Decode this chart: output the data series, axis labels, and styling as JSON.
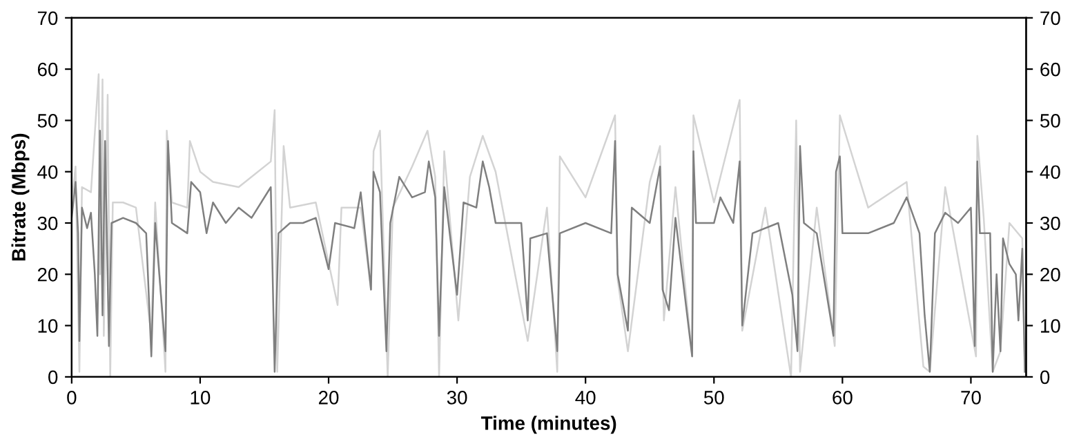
{
  "chart_data": {
    "type": "line",
    "xlabel": "Time (minutes)",
    "ylabel": "Bitrate (Mbps)",
    "xlim": [
      0,
      74.3
    ],
    "xticks": [
      0,
      10,
      20,
      30,
      40,
      50,
      60,
      70
    ],
    "ylim": [
      0,
      70
    ],
    "yticks": [
      0,
      10,
      20,
      30,
      40,
      50,
      60,
      70
    ],
    "y2lim": [
      0,
      70
    ],
    "y2ticks": [
      0,
      10,
      20,
      30,
      40,
      50,
      60,
      70
    ],
    "grid": false,
    "marker": "none",
    "line_style": "solid",
    "series": [
      {
        "color": "#d3d3d3",
        "x": [
          0,
          0.3,
          0.6,
          0.8,
          1.5,
          2.1,
          2.2,
          2.4,
          2.5,
          2.8,
          3.0,
          3.2,
          4,
          5,
          6.2,
          6.5,
          7.3,
          7.4,
          7.8,
          9,
          9.2,
          10,
          11,
          13,
          15.5,
          15.8,
          16,
          16.5,
          17,
          19,
          20.7,
          21,
          22.5,
          23.3,
          23.5,
          24,
          24.6,
          25,
          26.5,
          27.7,
          28.3,
          28.6,
          29,
          30.1,
          31,
          32,
          33,
          35.5,
          37,
          37.8,
          38,
          40,
          42.3,
          42.5,
          43.3,
          45,
          45.8,
          46.1,
          47,
          48.3,
          48.4,
          50,
          52,
          52.2,
          54,
          56,
          56.4,
          56.7,
          58,
          59.4,
          59.8,
          62,
          65,
          66.3,
          66.8,
          68,
          70.4,
          70.5,
          71,
          71.7,
          72.3,
          73,
          74,
          74.2
        ],
        "values": [
          34,
          41,
          1,
          37,
          36,
          59,
          20,
          58,
          8,
          55,
          0,
          34,
          34,
          33,
          8,
          34,
          1,
          48,
          34,
          33,
          46,
          40,
          38,
          37,
          42,
          52,
          1,
          45,
          33,
          34,
          14,
          33,
          33,
          17,
          44,
          48,
          0,
          33,
          41,
          48,
          39,
          0,
          44,
          11,
          39,
          47,
          40,
          7,
          33,
          1,
          43,
          35,
          51,
          19,
          5,
          38,
          45,
          11,
          37,
          4,
          51,
          34,
          54,
          9,
          33,
          0,
          50,
          1,
          33,
          6,
          51,
          33,
          38,
          2,
          1,
          37,
          4,
          47,
          31,
          1,
          5,
          30,
          27,
          1
        ]
      },
      {
        "color": "#7f7f7f",
        "x": [
          0,
          0.3,
          0.5,
          0.6,
          0.8,
          1.2,
          1.5,
          1.8,
          2.0,
          2.2,
          2.4,
          2.6,
          2.9,
          3.1,
          4,
          5,
          5.8,
          6.2,
          6.5,
          7.3,
          7.5,
          7.8,
          9,
          9.3,
          10,
          10.5,
          11,
          12,
          13,
          14,
          15.5,
          15.8,
          16.1,
          17,
          18,
          19,
          20,
          20.5,
          22,
          22.5,
          23.3,
          23.5,
          24,
          24.5,
          24.8,
          25.5,
          26.5,
          27.5,
          27.8,
          28.3,
          28.6,
          29,
          30,
          30.5,
          31.5,
          32,
          32.5,
          33,
          34,
          35,
          35.5,
          35.7,
          37,
          37.8,
          38,
          40,
          42,
          42.3,
          42.5,
          43.3,
          43.6,
          45,
          45.8,
          46,
          46.5,
          47,
          48.3,
          48.4,
          48.6,
          50,
          50.5,
          51.5,
          52,
          52.2,
          53,
          55,
          56.1,
          56.5,
          56.7,
          57,
          58,
          59.3,
          59.5,
          59.8,
          60,
          62,
          64,
          65,
          66,
          66.4,
          66.8,
          67.2,
          68,
          69,
          70,
          70.3,
          70.5,
          70.7,
          71.5,
          71.7,
          72,
          72.3,
          72.5,
          73,
          73.5,
          73.7,
          74,
          74.2
        ],
        "values": [
          31,
          38,
          28,
          7,
          33,
          29,
          32,
          20,
          8,
          48,
          12,
          46,
          6,
          30,
          31,
          30,
          28,
          4,
          30,
          5,
          46,
          30,
          28,
          38,
          36,
          28,
          34,
          30,
          33,
          31,
          37,
          1,
          28,
          30,
          30,
          31,
          21,
          30,
          29,
          36,
          17,
          40,
          36,
          5,
          30,
          39,
          35,
          36,
          42,
          35,
          8,
          37,
          16,
          34,
          33,
          42,
          37,
          30,
          30,
          30,
          11,
          27,
          28,
          5,
          28,
          30,
          28,
          46,
          20,
          9,
          33,
          30,
          41,
          17,
          13,
          31,
          4,
          44,
          30,
          30,
          35,
          30,
          42,
          10,
          28,
          30,
          16,
          5,
          45,
          30,
          28,
          8,
          40,
          43,
          28,
          28,
          30,
          35,
          28,
          12,
          1,
          28,
          32,
          30,
          33,
          6,
          42,
          28,
          28,
          1,
          20,
          5,
          27,
          22,
          20,
          11,
          25,
          1
        ]
      }
    ]
  }
}
